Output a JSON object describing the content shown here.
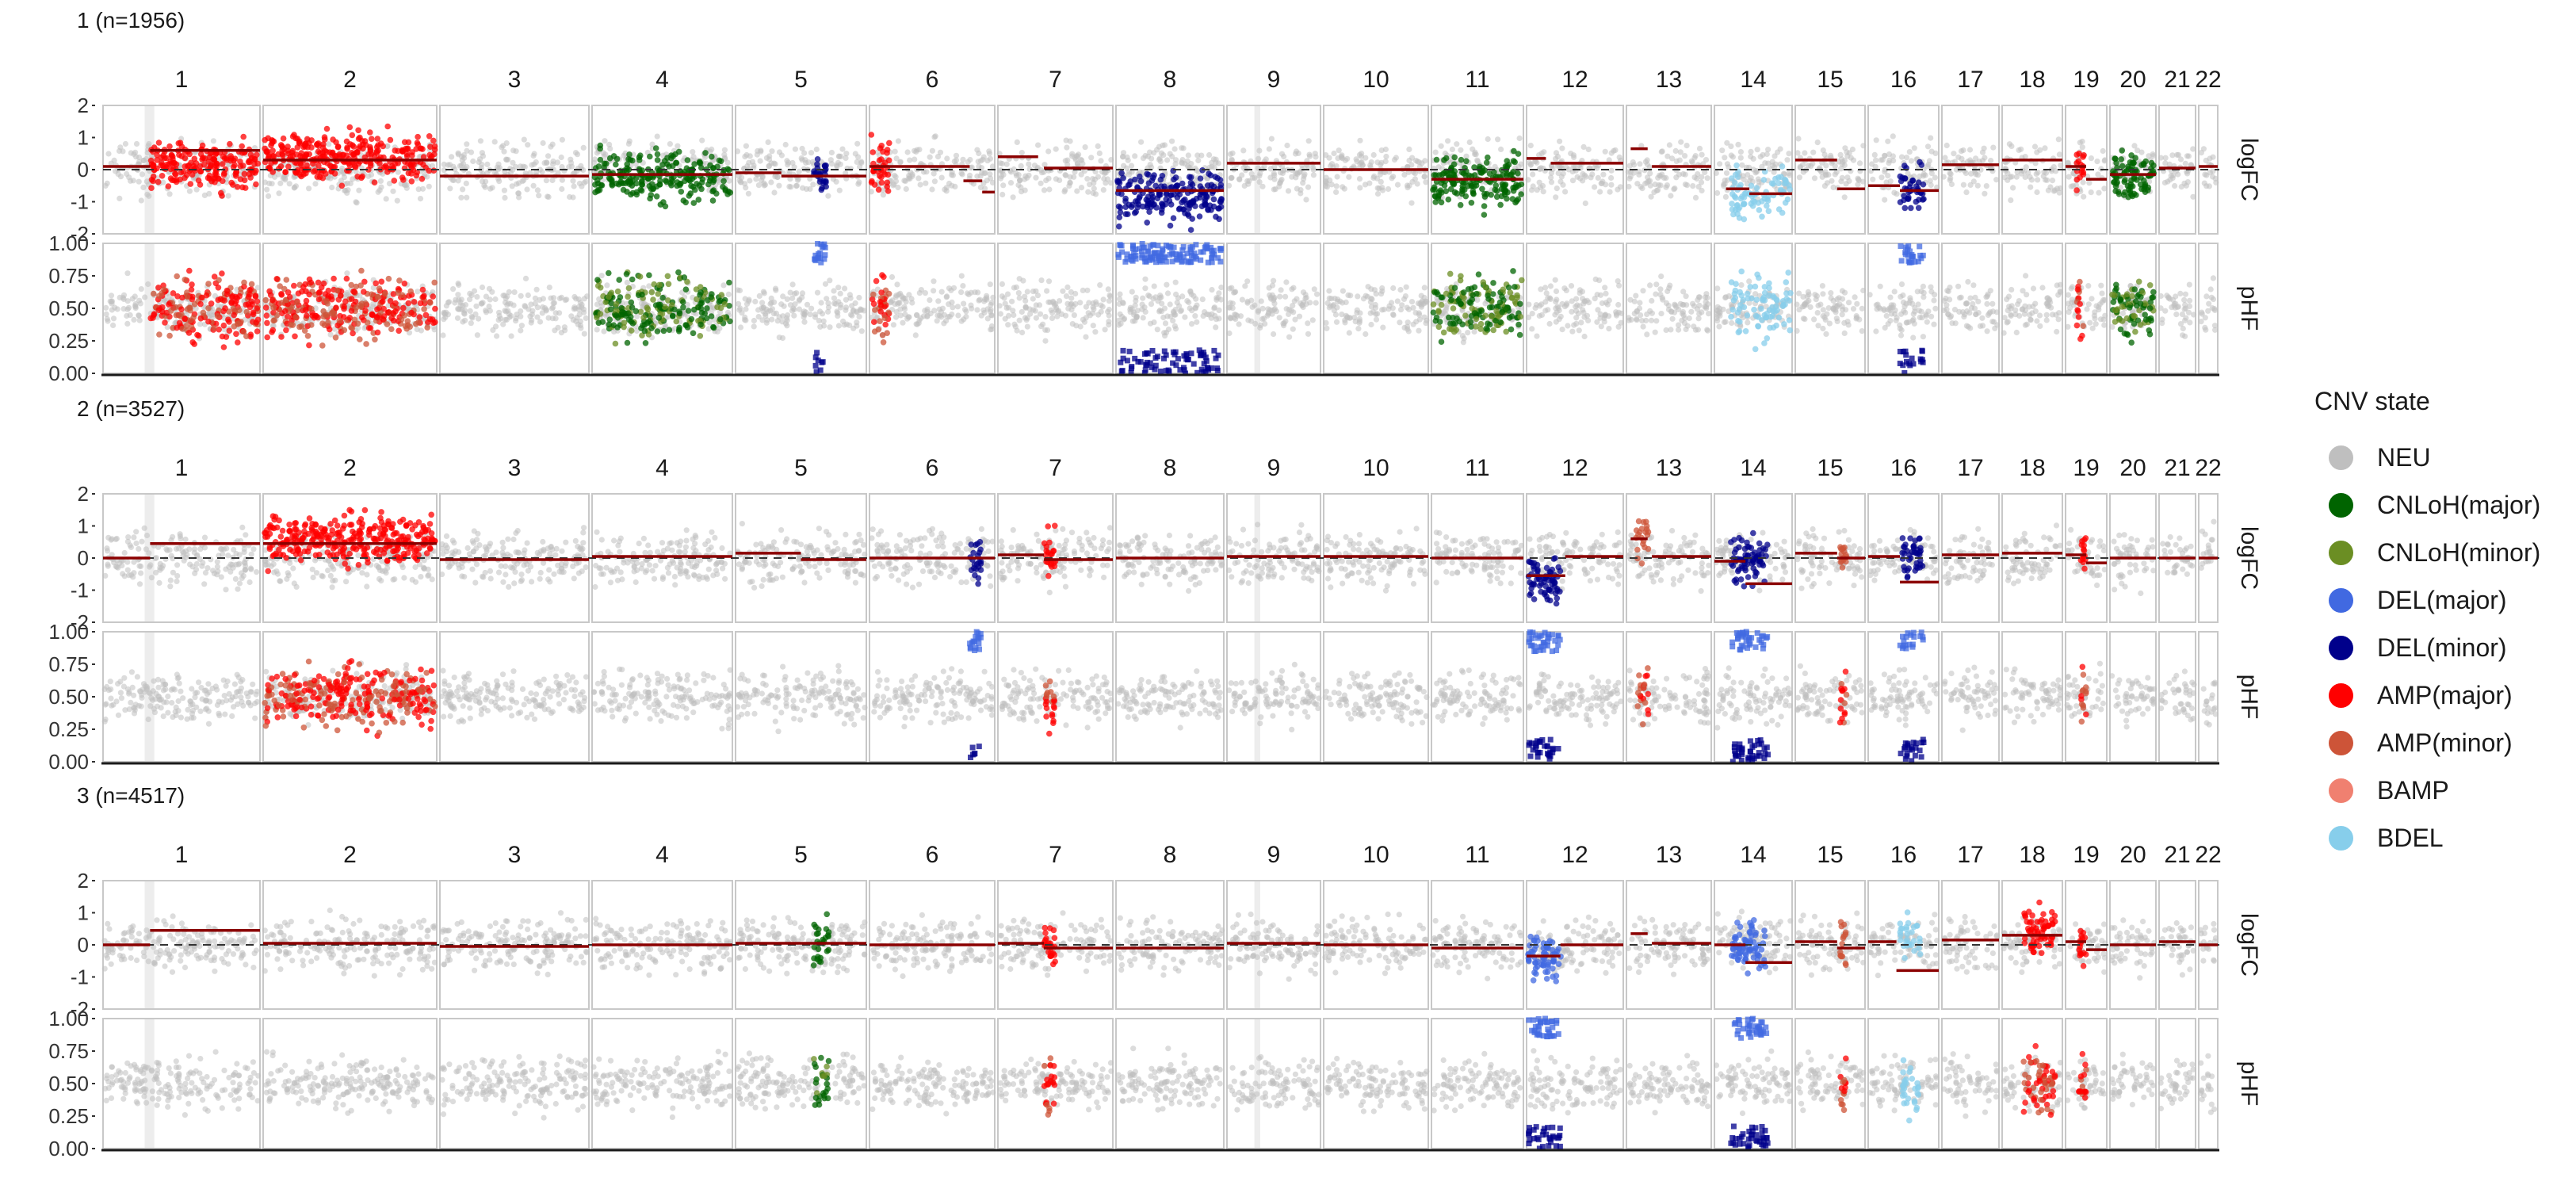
{
  "chart_data": {
    "type": "scatter",
    "description_free": true,
    "chromosomes": [
      "1",
      "2",
      "3",
      "4",
      "5",
      "6",
      "7",
      "8",
      "9",
      "10",
      "11",
      "12",
      "13",
      "14",
      "15",
      "16",
      "17",
      "18",
      "19",
      "20",
      "21",
      "22"
    ],
    "rows": [
      {
        "name": "logFC",
        "ylim": [
          -2,
          2
        ],
        "ticks": [
          "2",
          "1",
          "0",
          "-1",
          "-2"
        ]
      },
      {
        "name": "pHF",
        "ylim": [
          0,
          1
        ],
        "ticks": [
          "1.00",
          "0.75",
          "0.50",
          "0.25",
          "0.00"
        ]
      }
    ],
    "legend": {
      "title": "CNV state",
      "placement": "right",
      "states": [
        {
          "name": "NEU",
          "color": "#bfbfbf"
        },
        {
          "name": "CNLoH(major)",
          "color": "#006400"
        },
        {
          "name": "CNLoH(minor)",
          "color": "#6b8e23"
        },
        {
          "name": "DEL(major)",
          "color": "#4169e1"
        },
        {
          "name": "DEL(minor)",
          "color": "#00008b"
        },
        {
          "name": "AMP(major)",
          "color": "#ff0000"
        },
        {
          "name": "AMP(minor)",
          "color": "#cd5438"
        },
        {
          "name": "BAMP",
          "color": "#f08070"
        },
        {
          "name": "BDEL",
          "color": "#87ceeb"
        }
      ]
    },
    "clusters": [
      {
        "title": "1 (n=1956)",
        "segments_logFC": [
          {
            "chr": "1",
            "a": 0,
            "b": 0.3,
            "y": 0.1
          },
          {
            "chr": "1",
            "a": 0.3,
            "b": 1,
            "y": 0.6
          },
          {
            "chr": "2",
            "a": 0,
            "b": 1,
            "y": 0.3
          },
          {
            "chr": "3",
            "a": 0,
            "b": 1,
            "y": -0.2
          },
          {
            "chr": "4",
            "a": 0,
            "b": 1,
            "y": -0.15
          },
          {
            "chr": "5",
            "a": 0,
            "b": 0.35,
            "y": -0.1
          },
          {
            "chr": "5",
            "a": 0.35,
            "b": 1,
            "y": -0.2
          },
          {
            "chr": "6",
            "a": 0,
            "b": 0.8,
            "y": 0.1
          },
          {
            "chr": "6",
            "a": 0.75,
            "b": 0.9,
            "y": -0.35
          },
          {
            "chr": "6",
            "a": 0.9,
            "b": 1,
            "y": -0.7
          },
          {
            "chr": "7",
            "a": 0,
            "b": 0.35,
            "y": 0.4
          },
          {
            "chr": "7",
            "a": 0.4,
            "b": 1,
            "y": 0.05
          },
          {
            "chr": "8",
            "a": 0,
            "b": 1,
            "y": -0.65
          },
          {
            "chr": "9",
            "a": 0,
            "b": 1,
            "y": 0.2
          },
          {
            "chr": "10",
            "a": 0,
            "b": 1,
            "y": 0
          },
          {
            "chr": "11",
            "a": 0,
            "b": 1,
            "y": -0.3
          },
          {
            "chr": "12",
            "a": 0,
            "b": 0.2,
            "y": 0.35
          },
          {
            "chr": "12",
            "a": 0.25,
            "b": 1,
            "y": 0.2
          },
          {
            "chr": "13",
            "a": 0.05,
            "b": 0.25,
            "y": 0.65
          },
          {
            "chr": "13",
            "a": 0.3,
            "b": 1,
            "y": 0.1
          },
          {
            "chr": "14",
            "a": 0.15,
            "b": 0.45,
            "y": -0.6
          },
          {
            "chr": "14",
            "a": 0.45,
            "b": 1,
            "y": -0.75
          },
          {
            "chr": "15",
            "a": 0,
            "b": 0.6,
            "y": 0.3
          },
          {
            "chr": "15",
            "a": 0.6,
            "b": 1,
            "y": -0.6
          },
          {
            "chr": "16",
            "a": 0,
            "b": 0.45,
            "y": -0.5
          },
          {
            "chr": "16",
            "a": 0.45,
            "b": 1,
            "y": -0.65
          },
          {
            "chr": "17",
            "a": 0,
            "b": 1,
            "y": 0.15
          },
          {
            "chr": "18",
            "a": 0,
            "b": 1,
            "y": 0.3
          },
          {
            "chr": "19",
            "a": 0,
            "b": 0.5,
            "y": 0.1
          },
          {
            "chr": "19",
            "a": 0.5,
            "b": 1,
            "y": -0.3
          },
          {
            "chr": "20",
            "a": 0,
            "b": 1,
            "y": -0.15
          },
          {
            "chr": "21",
            "a": 0,
            "b": 1,
            "y": 0.05
          },
          {
            "chr": "22",
            "a": 0,
            "b": 1,
            "y": 0.1
          }
        ],
        "regions": [
          {
            "chr": "1",
            "a": 0.3,
            "b": 1,
            "state": "AMP(major)",
            "den": 1.0
          },
          {
            "chr": "2",
            "a": 0,
            "b": 1,
            "state": "AMP(major)",
            "den": 1.0
          },
          {
            "chr": "4",
            "a": 0,
            "b": 1,
            "state": "CNLoH(major)",
            "den": 0.9
          },
          {
            "chr": "5",
            "a": 0.6,
            "b": 0.7,
            "state": "DEL(minor)",
            "den": 0.8
          },
          {
            "chr": "6",
            "a": 0,
            "b": 0.15,
            "state": "AMP(major)",
            "den": 0.9
          },
          {
            "chr": "8",
            "a": 0,
            "b": 1,
            "state": "DEL(minor)",
            "den": 1.0
          },
          {
            "chr": "11",
            "a": 0,
            "b": 1,
            "state": "CNLoH(major)",
            "den": 1.0
          },
          {
            "chr": "14",
            "a": 0.2,
            "b": 1,
            "state": "BDEL",
            "den": 0.7
          },
          {
            "chr": "16",
            "a": 0.45,
            "b": 0.8,
            "state": "DEL(minor)",
            "den": 0.8
          },
          {
            "chr": "19",
            "a": 0.25,
            "b": 0.45,
            "state": "AMP(major)",
            "den": 0.6
          },
          {
            "chr": "20",
            "a": 0,
            "b": 1,
            "state": "CNLoH(major)",
            "den": 1.0
          }
        ]
      },
      {
        "title": "2 (n=3527)",
        "segments_logFC": [
          {
            "chr": "1",
            "a": 0,
            "b": 0.3,
            "y": 0.0
          },
          {
            "chr": "1",
            "a": 0.3,
            "b": 1,
            "y": 0.45
          },
          {
            "chr": "2",
            "a": 0,
            "b": 1,
            "y": 0.45
          },
          {
            "chr": "3",
            "a": 0,
            "b": 1,
            "y": -0.05
          },
          {
            "chr": "4",
            "a": 0,
            "b": 1,
            "y": 0.05
          },
          {
            "chr": "5",
            "a": 0,
            "b": 0.5,
            "y": 0.15
          },
          {
            "chr": "5",
            "a": 0.5,
            "b": 1,
            "y": -0.05
          },
          {
            "chr": "6",
            "a": 0,
            "b": 1,
            "y": 0.0
          },
          {
            "chr": "7",
            "a": 0,
            "b": 0.4,
            "y": 0.1
          },
          {
            "chr": "7",
            "a": 0.4,
            "b": 1,
            "y": -0.05
          },
          {
            "chr": "8",
            "a": 0,
            "b": 1,
            "y": 0.0
          },
          {
            "chr": "9",
            "a": 0,
            "b": 1,
            "y": 0.05
          },
          {
            "chr": "10",
            "a": 0,
            "b": 1,
            "y": 0.05
          },
          {
            "chr": "11",
            "a": 0,
            "b": 1,
            "y": 0.0
          },
          {
            "chr": "12",
            "a": 0,
            "b": 0.4,
            "y": -0.55
          },
          {
            "chr": "12",
            "a": 0.4,
            "b": 1,
            "y": 0.05
          },
          {
            "chr": "13",
            "a": 0.05,
            "b": 0.25,
            "y": 0.6
          },
          {
            "chr": "13",
            "a": 0.3,
            "b": 1,
            "y": 0.05
          },
          {
            "chr": "14",
            "a": 0,
            "b": 0.4,
            "y": -0.1
          },
          {
            "chr": "14",
            "a": 0.4,
            "b": 1,
            "y": -0.8
          },
          {
            "chr": "15",
            "a": 0,
            "b": 0.6,
            "y": 0.15
          },
          {
            "chr": "15",
            "a": 0.6,
            "b": 1,
            "y": 0.0
          },
          {
            "chr": "16",
            "a": 0,
            "b": 0.45,
            "y": 0.05
          },
          {
            "chr": "16",
            "a": 0.45,
            "b": 1,
            "y": -0.75
          },
          {
            "chr": "17",
            "a": 0,
            "b": 1,
            "y": 0.1
          },
          {
            "chr": "18",
            "a": 0,
            "b": 1,
            "y": 0.15
          },
          {
            "chr": "19",
            "a": 0,
            "b": 0.5,
            "y": 0.1
          },
          {
            "chr": "19",
            "a": 0.5,
            "b": 1,
            "y": -0.15
          },
          {
            "chr": "20",
            "a": 0,
            "b": 1,
            "y": 0.0
          },
          {
            "chr": "21",
            "a": 0,
            "b": 1,
            "y": 0.0
          },
          {
            "chr": "22",
            "a": 0,
            "b": 1,
            "y": 0.0
          }
        ],
        "regions": [
          {
            "chr": "2",
            "a": 0,
            "b": 1,
            "state": "AMP(major)",
            "den": 1.0
          },
          {
            "chr": "6",
            "a": 0.8,
            "b": 0.9,
            "state": "DEL(minor)",
            "den": 0.7
          },
          {
            "chr": "7",
            "a": 0.4,
            "b": 0.5,
            "state": "AMP(major)",
            "den": 0.7
          },
          {
            "chr": "12",
            "a": 0,
            "b": 0.35,
            "state": "DEL(minor)",
            "den": 1.0
          },
          {
            "chr": "13",
            "a": 0.1,
            "b": 0.25,
            "state": "AMP(minor)",
            "den": 0.6
          },
          {
            "chr": "14",
            "a": 0.2,
            "b": 0.7,
            "state": "DEL(minor)",
            "den": 1.0
          },
          {
            "chr": "15",
            "a": 0.65,
            "b": 0.75,
            "state": "AMP(minor)",
            "den": 0.6
          },
          {
            "chr": "16",
            "a": 0.45,
            "b": 0.8,
            "state": "DEL(minor)",
            "den": 0.8
          },
          {
            "chr": "19",
            "a": 0.35,
            "b": 0.5,
            "state": "AMP(major)",
            "den": 0.6
          }
        ]
      },
      {
        "title": "3 (n=4517)",
        "segments_logFC": [
          {
            "chr": "1",
            "a": 0,
            "b": 0.3,
            "y": 0.0
          },
          {
            "chr": "1",
            "a": 0.3,
            "b": 1,
            "y": 0.45
          },
          {
            "chr": "2",
            "a": 0,
            "b": 1,
            "y": 0.05
          },
          {
            "chr": "3",
            "a": 0,
            "b": 1,
            "y": -0.05
          },
          {
            "chr": "4",
            "a": 0,
            "b": 1,
            "y": 0.0
          },
          {
            "chr": "5",
            "a": 0,
            "b": 1,
            "y": 0.05
          },
          {
            "chr": "6",
            "a": 0,
            "b": 1,
            "y": 0.0
          },
          {
            "chr": "7",
            "a": 0,
            "b": 0.4,
            "y": 0.05
          },
          {
            "chr": "7",
            "a": 0.4,
            "b": 1,
            "y": -0.1
          },
          {
            "chr": "8",
            "a": 0,
            "b": 1,
            "y": -0.1
          },
          {
            "chr": "9",
            "a": 0,
            "b": 1,
            "y": 0.05
          },
          {
            "chr": "10",
            "a": 0,
            "b": 1,
            "y": 0.0
          },
          {
            "chr": "11",
            "a": 0,
            "b": 1,
            "y": -0.1
          },
          {
            "chr": "12",
            "a": 0,
            "b": 0.35,
            "y": -0.35
          },
          {
            "chr": "12",
            "a": 0.35,
            "b": 1,
            "y": 0.0
          },
          {
            "chr": "13",
            "a": 0.05,
            "b": 0.25,
            "y": 0.35
          },
          {
            "chr": "13",
            "a": 0.3,
            "b": 1,
            "y": 0.05
          },
          {
            "chr": "14",
            "a": 0,
            "b": 0.4,
            "y": 0.0
          },
          {
            "chr": "14",
            "a": 0.4,
            "b": 1,
            "y": -0.55
          },
          {
            "chr": "15",
            "a": 0,
            "b": 0.6,
            "y": 0.1
          },
          {
            "chr": "15",
            "a": 0.6,
            "b": 1,
            "y": -0.1
          },
          {
            "chr": "16",
            "a": 0,
            "b": 0.4,
            "y": 0.1
          },
          {
            "chr": "16",
            "a": 0.4,
            "b": 1,
            "y": -0.8
          },
          {
            "chr": "17",
            "a": 0,
            "b": 1,
            "y": 0.15
          },
          {
            "chr": "18",
            "a": 0,
            "b": 1,
            "y": 0.3
          },
          {
            "chr": "19",
            "a": 0,
            "b": 0.5,
            "y": 0.1
          },
          {
            "chr": "19",
            "a": 0.5,
            "b": 1,
            "y": -0.15
          },
          {
            "chr": "20",
            "a": 0,
            "b": 1,
            "y": 0.0
          },
          {
            "chr": "21",
            "a": 0,
            "b": 1,
            "y": 0.1
          },
          {
            "chr": "22",
            "a": 0,
            "b": 1,
            "y": 0.0
          }
        ],
        "regions": [
          {
            "chr": "5",
            "a": 0.6,
            "b": 0.72,
            "state": "CNLoH(major)",
            "den": 0.7
          },
          {
            "chr": "7",
            "a": 0.4,
            "b": 0.5,
            "state": "AMP(major)",
            "den": 0.8
          },
          {
            "chr": "12",
            "a": 0,
            "b": 0.35,
            "state": "DEL(major)",
            "den": 1.0
          },
          {
            "chr": "14",
            "a": 0.2,
            "b": 0.7,
            "state": "DEL(major)",
            "den": 1.0
          },
          {
            "chr": "15",
            "a": 0.65,
            "b": 0.75,
            "state": "AMP(minor)",
            "den": 0.6
          },
          {
            "chr": "16",
            "a": 0.45,
            "b": 0.75,
            "state": "BDEL",
            "den": 0.6
          },
          {
            "chr": "18",
            "a": 0.35,
            "b": 0.9,
            "state": "AMP(major)",
            "den": 1.0
          },
          {
            "chr": "19",
            "a": 0.3,
            "b": 0.5,
            "state": "AMP(major)",
            "den": 0.6
          }
        ]
      }
    ]
  }
}
